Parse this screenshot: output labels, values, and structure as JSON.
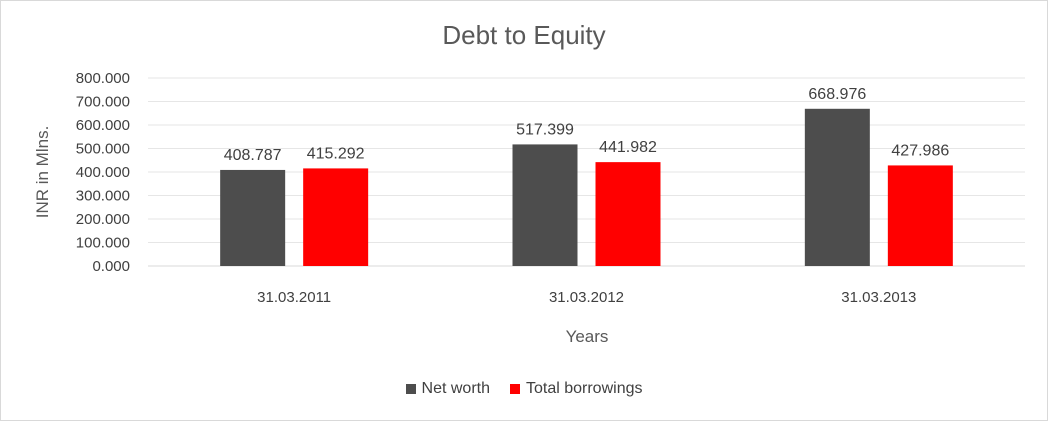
{
  "chart_data": {
    "type": "bar",
    "title": "Debt to Equity",
    "xlabel": "Years",
    "ylabel": "INR in Mlns.",
    "categories": [
      "31.03.2011",
      "31.03.2012",
      "31.03.2013"
    ],
    "series": [
      {
        "name": "Net worth",
        "values": [
          408.787,
          517.399,
          668.976
        ],
        "color": "#4d4d4d"
      },
      {
        "name": "Total borrowings",
        "values": [
          415.292,
          441.982,
          427.986
        ],
        "color": "#ff0000"
      }
    ],
    "ylim": [
      0,
      800
    ],
    "yticks": [
      0,
      100,
      200,
      300,
      400,
      500,
      600,
      700,
      800
    ],
    "ytick_labels": [
      "0.000",
      "100.000",
      "200.000",
      "300.000",
      "400.000",
      "500.000",
      "600.000",
      "700.000",
      "800.000"
    ],
    "data_labels": [
      [
        "408.787",
        "517.399",
        "668.976"
      ],
      [
        "415.292",
        "441.982",
        "427.986"
      ]
    ],
    "grid": true,
    "legend_position": "bottom"
  }
}
